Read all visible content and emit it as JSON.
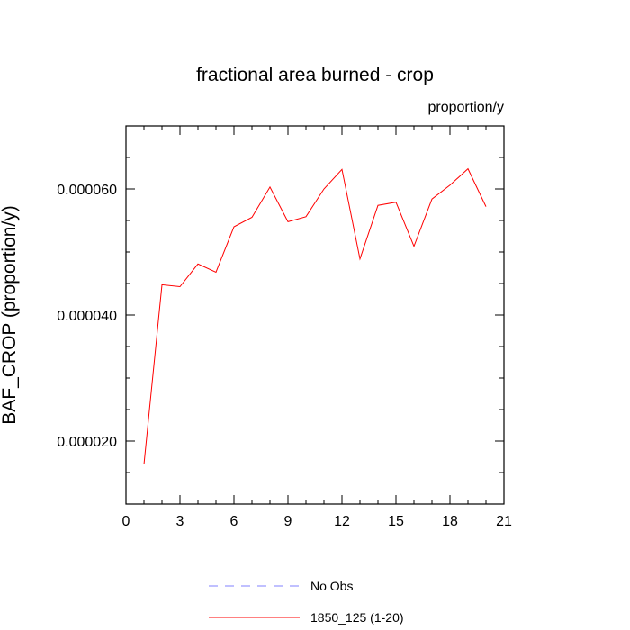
{
  "chart_data": {
    "type": "line",
    "title": "fractional area burned - crop",
    "units_label": "proportion/y",
    "ylabel": "BAF_CROP  (proportion/y)",
    "xlabel": "",
    "xlim": [
      0,
      21
    ],
    "ylim": [
      1e-05,
      7e-05
    ],
    "xticks": [
      0,
      3,
      6,
      9,
      12,
      15,
      18,
      21
    ],
    "xtick_labels": [
      "0",
      "3",
      "6",
      "9",
      "12",
      "15",
      "18",
      "21"
    ],
    "yticks": [
      2e-05,
      4e-05,
      6e-05
    ],
    "ytick_labels": [
      "0.000020",
      "0.000040",
      "0.000060"
    ],
    "grid": false,
    "legend_position": "bottom-center",
    "series": [
      {
        "name": "1850_125 (1-20)",
        "color": "#ff0000",
        "line_style": "solid",
        "x": [
          1,
          2,
          3,
          4,
          5,
          6,
          7,
          8,
          9,
          10,
          11,
          12,
          13,
          14,
          15,
          16,
          17,
          18,
          19,
          20
        ],
        "y": [
          1.63e-05,
          4.48e-05,
          4.45e-05,
          4.81e-05,
          4.68e-05,
          5.4e-05,
          5.55e-05,
          6.03e-05,
          5.48e-05,
          5.56e-05,
          6e-05,
          6.31e-05,
          4.89e-05,
          5.74e-05,
          5.79e-05,
          5.09e-05,
          5.84e-05,
          6.06e-05,
          6.32e-05,
          5.72e-05
        ]
      }
    ],
    "legend": [
      {
        "label": "No Obs",
        "color": "#8080ff",
        "line_style": "dashed"
      },
      {
        "label": "1850_125 (1-20)",
        "color": "#ff0000",
        "line_style": "solid"
      }
    ]
  }
}
